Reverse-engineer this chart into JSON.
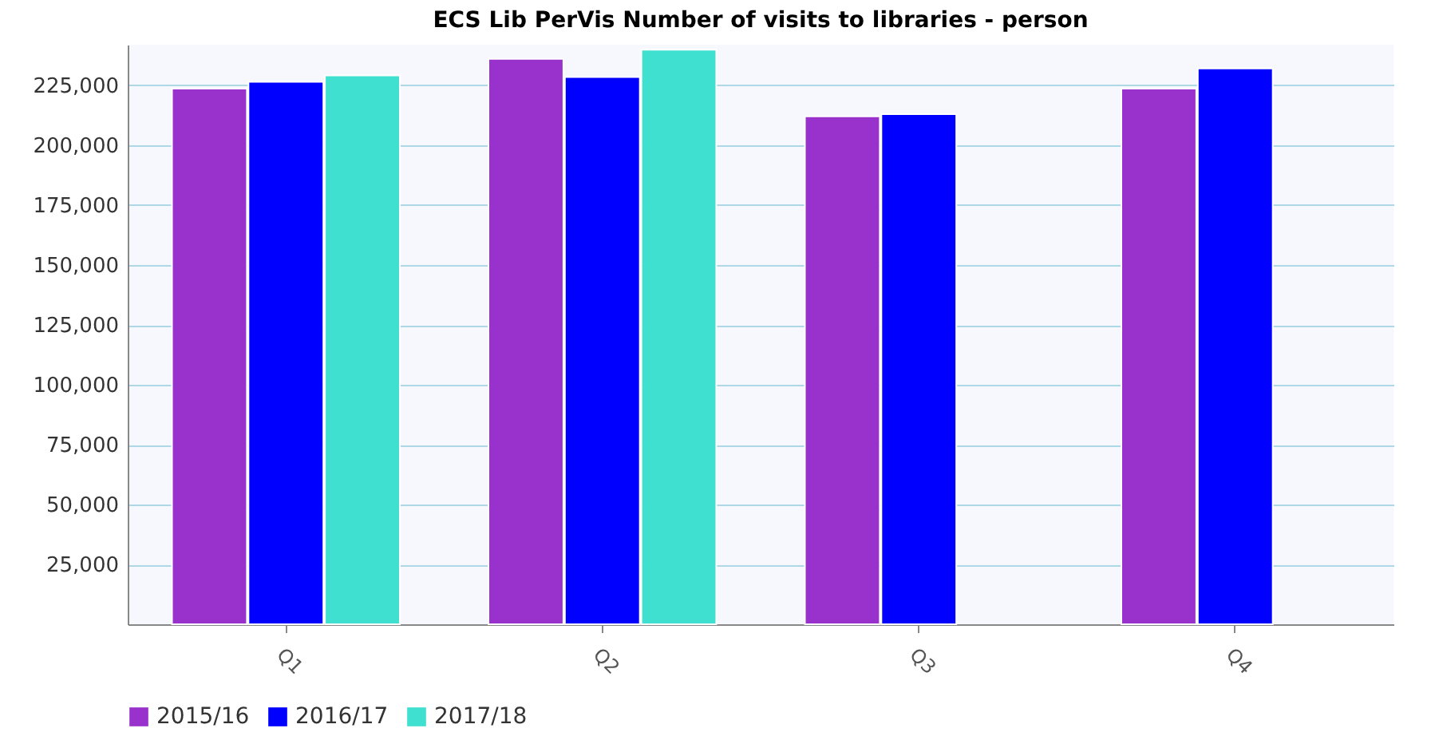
{
  "chart_data": {
    "type": "bar",
    "title": "ECS Lib PerVis Number of visits to libraries - person",
    "categories": [
      "Q1",
      "Q2",
      "Q3",
      "Q4"
    ],
    "series": [
      {
        "name": "2015/16",
        "color": "#9932cc",
        "values": [
          223700,
          236100,
          212100,
          223700
        ]
      },
      {
        "name": "2016/17",
        "color": "#0000ff",
        "values": [
          226500,
          228500,
          213000,
          232100
        ]
      },
      {
        "name": "2017/18",
        "color": "#40e0d0",
        "values": [
          229200,
          239900,
          null,
          null
        ]
      }
    ],
    "ylim": [
      0,
      242000
    ],
    "yticks": [
      {
        "value": 25000,
        "label": "25,000"
      },
      {
        "value": 50000,
        "label": "50,000"
      },
      {
        "value": 75000,
        "label": "75,000"
      },
      {
        "value": 100000,
        "label": "100,000"
      },
      {
        "value": 125000,
        "label": "125,000"
      },
      {
        "value": 150000,
        "label": "150,000"
      },
      {
        "value": 175000,
        "label": "175,000"
      },
      {
        "value": 200000,
        "label": "200,000"
      },
      {
        "value": 225000,
        "label": "225,000"
      }
    ],
    "grid": "y",
    "legend": "bottom"
  }
}
